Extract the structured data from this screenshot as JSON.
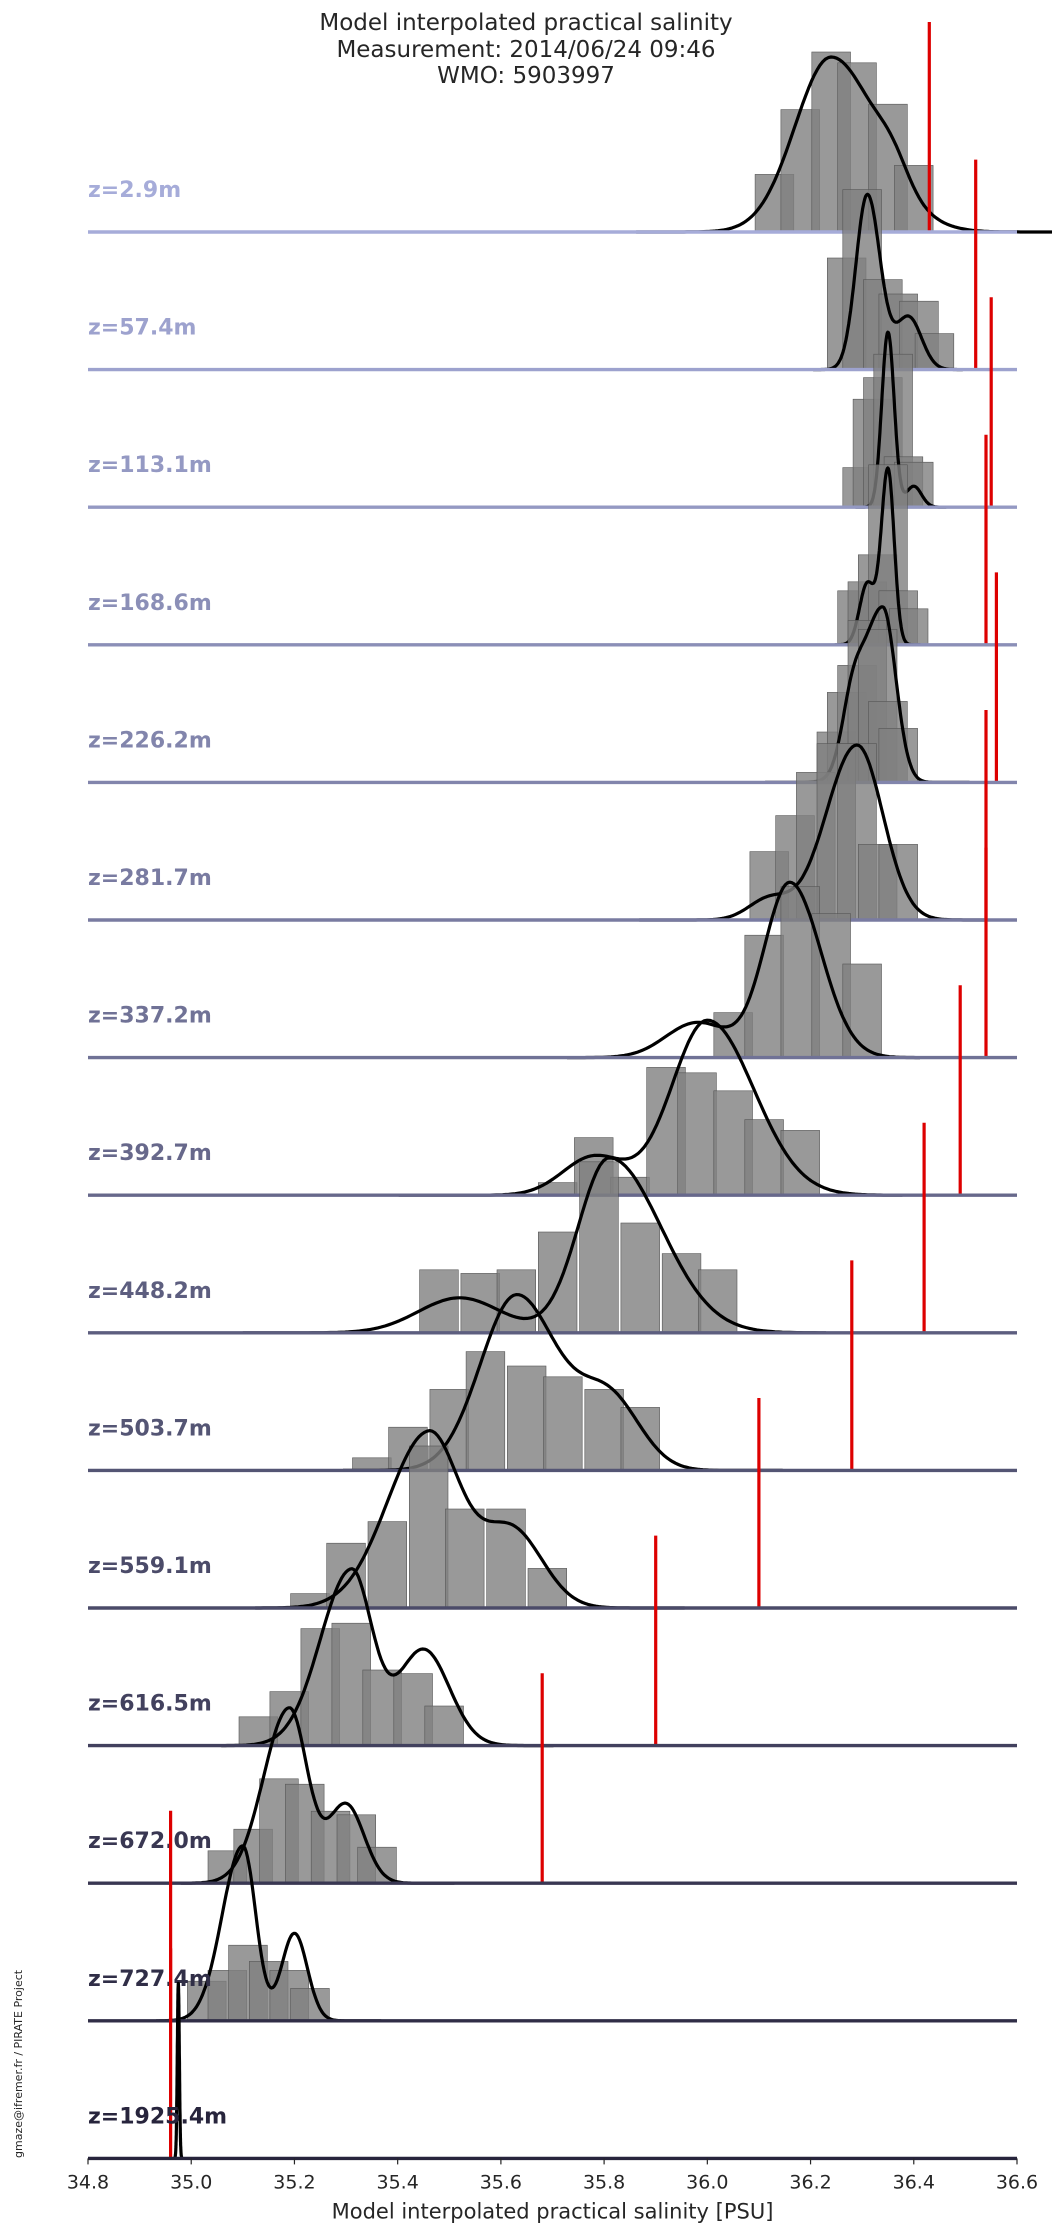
{
  "chart_data": {
    "type": "ridgeline-histogram",
    "title": [
      "Model interpolated practical salinity",
      "Measurement: 2014/06/24 09:46",
      "WMO: 5903997"
    ],
    "xlabel": "Model interpolated practical salinity [PSU]",
    "xlim": [
      34.8,
      36.6
    ],
    "xticks": [
      "34.8",
      "35.0",
      "35.2",
      "35.4",
      "35.6",
      "35.8",
      "36.0",
      "36.2",
      "36.4",
      "36.6"
    ],
    "bin_width": 0.075,
    "grid": false,
    "colors": {
      "bars": "#7f7f7f",
      "bar_edge": "#555555",
      "kde": "#000000",
      "measurement": "#dd0000",
      "baseline_top": "#a6acd9",
      "baseline_bottom": "#27243c",
      "label_top": "#a6acd9",
      "label_bottom": "#27243c"
    },
    "note": "Per depth: gray histogram of model values (relative heights 0-1), black density curve, red vertical line = measured salinity.",
    "depths": [
      {
        "label": "z=2.9m",
        "measurement": 36.43,
        "bins": [
          [
            36.13,
            0.32
          ],
          [
            36.18,
            0.68
          ],
          [
            36.24,
            1.0
          ],
          [
            36.29,
            0.94
          ],
          [
            36.35,
            0.71
          ],
          [
            36.4,
            0.37
          ]
        ],
        "kde": {
          "peak": 36.24,
          "sl": 0.07,
          "sr": 0.09,
          "h": 1.0,
          "c2": 36.36,
          "s2": 0.03,
          "h2": 0.12
        }
      },
      {
        "label": "z=57.4m",
        "measurement": 36.52,
        "bins": [
          [
            36.27,
            0.62
          ],
          [
            36.3,
            1.0
          ],
          [
            36.34,
            0.5
          ],
          [
            36.37,
            0.42
          ],
          [
            36.41,
            0.38
          ],
          [
            36.44,
            0.2
          ]
        ],
        "kde": {
          "peak": 36.31,
          "sl": 0.022,
          "sr": 0.025,
          "h": 1.0,
          "c2": 36.39,
          "s2": 0.025,
          "h2": 0.3
        }
      },
      {
        "label": "z=113.1m",
        "measurement": 36.55,
        "bins": [
          [
            36.3,
            0.22
          ],
          [
            36.32,
            0.6
          ],
          [
            36.34,
            0.72
          ],
          [
            36.36,
            0.85
          ],
          [
            36.38,
            0.28
          ],
          [
            36.4,
            0.25
          ]
        ],
        "kde": {
          "peak": 36.35,
          "sl": 0.012,
          "sr": 0.012,
          "h": 1.0,
          "c2": 36.4,
          "s2": 0.015,
          "h2": 0.12
        }
      },
      {
        "label": "z=168.6m",
        "measurement": 36.54,
        "bins": [
          [
            36.29,
            0.3
          ],
          [
            36.31,
            0.35
          ],
          [
            36.33,
            0.5
          ],
          [
            36.35,
            1.0
          ],
          [
            36.37,
            0.3
          ],
          [
            36.39,
            0.2
          ]
        ],
        "kde": {
          "peak": 36.35,
          "sl": 0.013,
          "sr": 0.012,
          "h": 1.0,
          "c2": 36.31,
          "s2": 0.015,
          "h2": 0.35
        }
      },
      {
        "label": "z=226.2m",
        "measurement": 36.56,
        "bins": [
          [
            36.25,
            0.28
          ],
          [
            36.27,
            0.5
          ],
          [
            36.29,
            0.65
          ],
          [
            36.31,
            0.9
          ],
          [
            36.33,
            0.85
          ],
          [
            36.35,
            0.45
          ],
          [
            36.37,
            0.3
          ]
        ],
        "kde": {
          "peak": 36.34,
          "sl": 0.04,
          "sr": 0.025,
          "h": 1.0,
          "c2": 36.28,
          "s2": 0.02,
          "h2": 0.3
        }
      },
      {
        "label": "z=281.7m",
        "measurement": 36.54,
        "bins": [
          [
            36.12,
            0.38
          ],
          [
            36.17,
            0.58
          ],
          [
            36.21,
            0.82
          ],
          [
            36.25,
            0.98
          ],
          [
            36.29,
            0.98
          ],
          [
            36.33,
            0.42
          ],
          [
            36.37,
            0.42
          ]
        ],
        "kde": {
          "peak": 36.29,
          "sl": 0.06,
          "sr": 0.05,
          "h": 1.0,
          "c2": 36.12,
          "s2": 0.04,
          "h2": 0.12
        }
      },
      {
        "label": "z=337.2m",
        "measurement": 36.54,
        "bins": [
          [
            36.05,
            0.25
          ],
          [
            36.11,
            0.68
          ],
          [
            36.18,
            0.95
          ],
          [
            36.24,
            0.8
          ],
          [
            36.3,
            0.52
          ]
        ],
        "kde": {
          "peak": 36.16,
          "sl": 0.05,
          "sr": 0.06,
          "h": 1.0,
          "c2": 35.98,
          "s2": 0.06,
          "h2": 0.2
        }
      },
      {
        "label": "z=392.7m",
        "measurement": 36.49,
        "bins": [
          [
            35.71,
            0.07
          ],
          [
            35.78,
            0.32
          ],
          [
            35.85,
            0.1
          ],
          [
            35.92,
            0.71
          ],
          [
            35.98,
            0.68
          ],
          [
            36.05,
            0.58
          ],
          [
            36.11,
            0.42
          ],
          [
            36.18,
            0.36
          ]
        ],
        "kde": {
          "peak": 36.0,
          "sl": 0.07,
          "sr": 0.09,
          "h": 1.0,
          "c2": 35.78,
          "s2": 0.06,
          "h2": 0.22
        }
      },
      {
        "label": "z=448.2m",
        "measurement": 36.42,
        "bins": [
          [
            35.48,
            0.35
          ],
          [
            35.56,
            0.33
          ],
          [
            35.63,
            0.35
          ],
          [
            35.71,
            0.56
          ],
          [
            35.79,
            0.95
          ],
          [
            35.87,
            0.61
          ],
          [
            35.95,
            0.44
          ],
          [
            36.02,
            0.35
          ]
        ],
        "kde": {
          "peak": 35.81,
          "sl": 0.06,
          "sr": 0.1,
          "h": 1.0,
          "c2": 35.52,
          "s2": 0.08,
          "h2": 0.2
        }
      },
      {
        "label": "z=503.7m",
        "measurement": 36.28,
        "bins": [
          [
            35.35,
            0.07
          ],
          [
            35.42,
            0.24
          ],
          [
            35.5,
            0.45
          ],
          [
            35.57,
            0.66
          ],
          [
            35.65,
            0.58
          ],
          [
            35.72,
            0.52
          ],
          [
            35.8,
            0.45
          ],
          [
            35.87,
            0.35
          ]
        ],
        "kde": {
          "peak": 35.63,
          "sl": 0.07,
          "sr": 0.08,
          "h": 1.0,
          "c2": 35.81,
          "s2": 0.06,
          "h2": 0.4
        }
      },
      {
        "label": "z=559.1m",
        "measurement": 36.1,
        "bins": [
          [
            35.23,
            0.08
          ],
          [
            35.3,
            0.36
          ],
          [
            35.38,
            0.48
          ],
          [
            35.46,
            0.9
          ],
          [
            35.53,
            0.55
          ],
          [
            35.61,
            0.55
          ],
          [
            35.69,
            0.22
          ]
        ],
        "kde": {
          "peak": 35.46,
          "sl": 0.08,
          "sr": 0.06,
          "h": 1.0,
          "c2": 35.62,
          "s2": 0.06,
          "h2": 0.45
        }
      },
      {
        "label": "z=616.5m",
        "measurement": 35.9,
        "bins": [
          [
            35.13,
            0.16
          ],
          [
            35.19,
            0.3
          ],
          [
            35.25,
            0.65
          ],
          [
            35.31,
            0.68
          ],
          [
            35.37,
            0.42
          ],
          [
            35.43,
            0.4
          ],
          [
            35.49,
            0.22
          ]
        ],
        "kde": {
          "peak": 35.31,
          "sl": 0.06,
          "sr": 0.04,
          "h": 1.0,
          "c2": 35.45,
          "s2": 0.05,
          "h2": 0.55
        }
      },
      {
        "label": "z=672.0m",
        "measurement": 35.68,
        "bins": [
          [
            35.07,
            0.18
          ],
          [
            35.12,
            0.3
          ],
          [
            35.17,
            0.58
          ],
          [
            35.22,
            0.55
          ],
          [
            35.27,
            0.4
          ],
          [
            35.32,
            0.38
          ],
          [
            35.36,
            0.2
          ]
        ],
        "kde": {
          "peak": 35.19,
          "sl": 0.05,
          "sr": 0.035,
          "h": 1.0,
          "c2": 35.3,
          "s2": 0.035,
          "h2": 0.45
        }
      },
      {
        "label": "z=727.4m",
        "measurement": 34.96,
        "bins": [
          [
            35.03,
            0.22
          ],
          [
            35.07,
            0.28
          ],
          [
            35.11,
            0.42
          ],
          [
            35.15,
            0.33
          ],
          [
            35.19,
            0.28
          ],
          [
            35.23,
            0.18
          ]
        ],
        "kde": {
          "peak": 35.1,
          "sl": 0.04,
          "sr": 0.025,
          "h": 1.0,
          "c2": 35.2,
          "s2": 0.025,
          "h2": 0.5
        }
      },
      {
        "label": "z=1925.4m",
        "measurement": 34.96,
        "bins": [],
        "kde": {
          "peak": 34.975,
          "sl": 0.002,
          "sr": 0.002,
          "h": 1.0,
          "c2": 34.975,
          "s2": 0.002,
          "h2": 0.0
        }
      }
    ]
  },
  "credit": "gmaze@ifremer.fr / PIRATE Project"
}
